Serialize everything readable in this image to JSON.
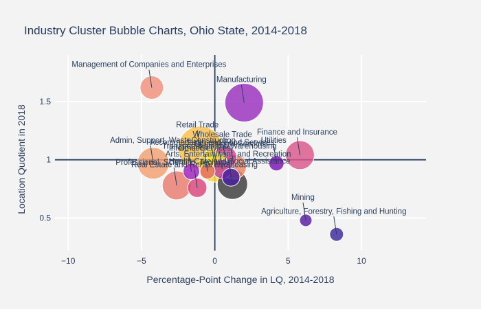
{
  "chart_data": {
    "type": "scatter",
    "title": "Industry Cluster Bubble Charts, Ohio State, 2014-2018",
    "xlabel": "Percentage-Point Change in LQ, 2014-2018",
    "ylabel": "Location Quotient in 2018",
    "xlim": [
      -10.9,
      14.4
    ],
    "ylim": [
      0.22,
      1.9
    ],
    "xticks": [
      -10,
      -5,
      0,
      5,
      10
    ],
    "yticks": [
      0.5,
      1,
      1.5
    ],
    "grid": true,
    "reference_lines": {
      "x": 0,
      "y": 1
    },
    "series": [
      {
        "name": "Management of Companies and Enterprises",
        "x": -4.3,
        "y": 1.62,
        "size": 17,
        "color": "#f0907a",
        "show_label": true
      },
      {
        "name": "Manufacturing",
        "x": 2.0,
        "y": 1.49,
        "size": 28,
        "color": "#9a2fc0",
        "show_label": true
      },
      {
        "name": "Wholesale Trade",
        "x": 0.7,
        "y": 1.02,
        "size": 17,
        "color": "#d04a8f",
        "show_label": true
      },
      {
        "name": "Finance and Insurance",
        "x": 5.8,
        "y": 1.04,
        "size": 21,
        "color": "#d9578a",
        "show_label": true
      },
      {
        "name": "Utilities",
        "x": 4.2,
        "y": 0.97,
        "size": 11,
        "color": "#7a14b0",
        "show_label": true
      },
      {
        "name": "Educational Services",
        "x": 1.3,
        "y": 0.94,
        "size": 18,
        "color": "#ee8560",
        "show_label": true
      },
      {
        "name": "Mining",
        "x": 6.2,
        "y": 0.48,
        "size": 9,
        "color": "#5b1aa8",
        "show_label": true
      },
      {
        "name": "Agriculture, Forestry, Fishing and Hunting",
        "x": 8.3,
        "y": 0.36,
        "size": 10,
        "color": "#3a2a9a",
        "show_label": true
      },
      {
        "name": "Admin, Support, Waste",
        "x": -4.2,
        "y": 0.97,
        "size": 23,
        "color": "#f2a070",
        "show_label": true
      },
      {
        "name": "Retail Trade",
        "x": -1.0,
        "y": 1.1,
        "size": 32,
        "color": "#fbbf4c",
        "show_label": true
      },
      {
        "name": "Professional, Scientific, Technical",
        "x": -2.6,
        "y": 0.78,
        "size": 21,
        "color": "#ea7b70",
        "show_label": true
      },
      {
        "name": "Real Estate and Rental and Leasing",
        "x": -1.2,
        "y": 0.76,
        "size": 14,
        "color": "#d8467a",
        "show_label": true
      },
      {
        "name": "Arts, Entertainment, and Recreation",
        "x": 1.1,
        "y": 0.85,
        "size": 13,
        "color": "#4a20a0",
        "show_label": true
      },
      {
        "name": "Accommodation and Food Services",
        "x": 0.0,
        "y": 0.95,
        "size": 24,
        "color": "#fdd830",
        "show_label": true
      },
      {
        "name": "Information",
        "x": -1.6,
        "y": 0.9,
        "size": 12,
        "color": "#a020c0",
        "show_label": true
      },
      {
        "name": "Transportation and Warehousing",
        "x": 0.5,
        "y": 0.92,
        "size": 14,
        "color": "#c03ca0",
        "show_label": true
      },
      {
        "name": "Construction",
        "x": 0.1,
        "y": 0.97,
        "size": 16,
        "color": "#f7e62a",
        "show_label": true
      },
      {
        "name": "Health Care and Social Assistance",
        "x": 1.2,
        "y": 0.79,
        "size": 22,
        "color": "#3a3a3a",
        "show_label": true
      },
      {
        "name": "Other Services",
        "x": -0.5,
        "y": 0.9,
        "size": 11,
        "color": "#e06a60",
        "show_label": true
      }
    ]
  }
}
